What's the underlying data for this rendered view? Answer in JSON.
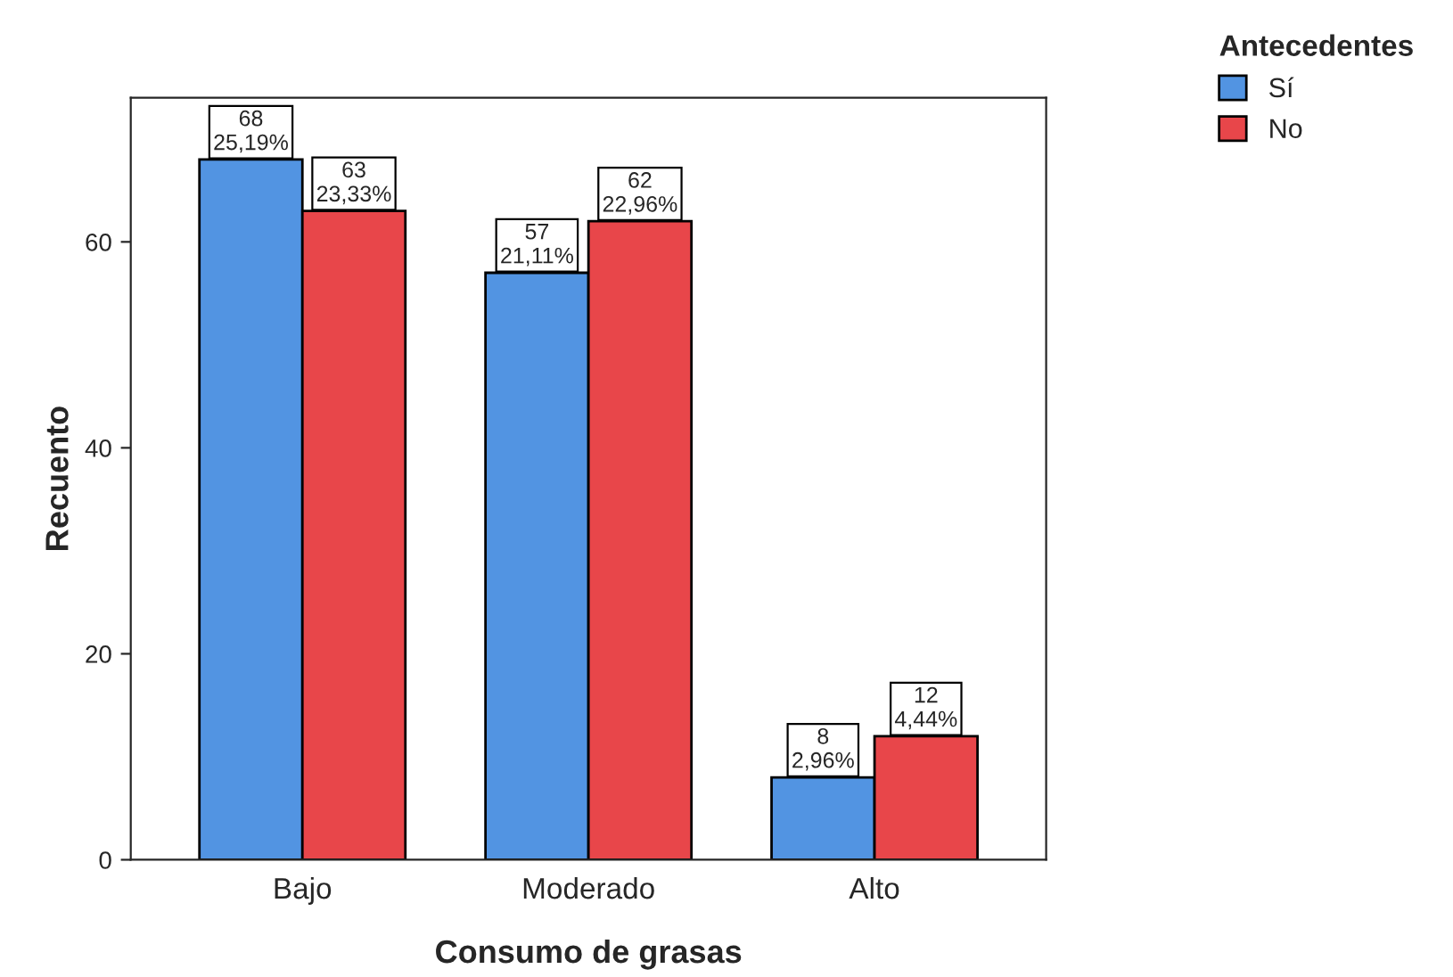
{
  "chart_data": {
    "type": "bar",
    "xlabel": "Consumo de grasas",
    "ylabel": "Recuento",
    "legend_title": "Antecedentes",
    "categories": [
      "Bajo",
      "Moderado",
      "Alto"
    ],
    "series": [
      {
        "name": "Sí",
        "color": "#5294e2",
        "values": [
          68,
          57,
          8
        ],
        "value_labels": [
          "68\n25,19%",
          "57\n21,11%",
          "8\n2,96%"
        ]
      },
      {
        "name": "No",
        "color": "#e8464a",
        "values": [
          63,
          62,
          12
        ],
        "value_labels": [
          "63\n23,33%",
          "62\n22,96%",
          "12\n4,44%"
        ]
      }
    ],
    "ylim": [
      0,
      74
    ],
    "yticks": [
      0,
      20,
      40,
      60
    ],
    "grid": false,
    "legend": "top right"
  }
}
